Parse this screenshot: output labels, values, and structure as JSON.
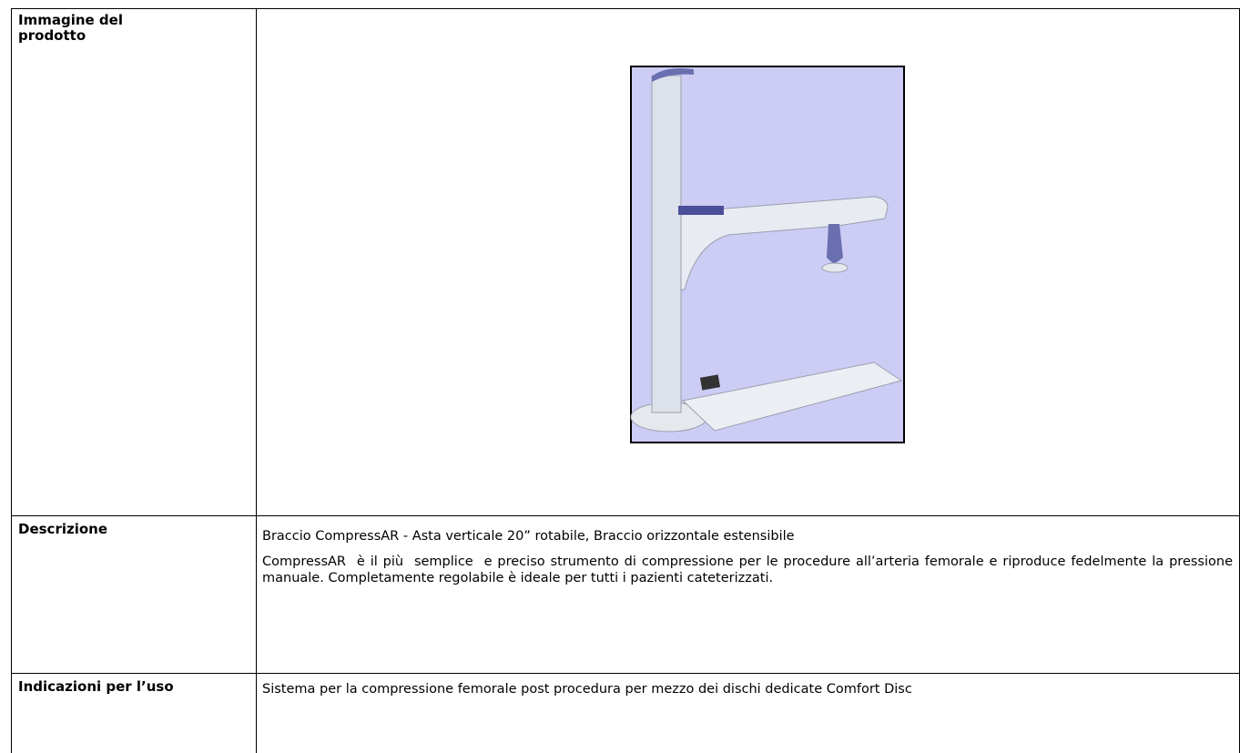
{
  "table": {
    "rows": [
      {
        "label": "Immagine del prodotto"
      },
      {
        "label": "Descrizione",
        "paragraphs": [
          "Braccio CompressAR - Asta verticale 20” rotabile, Braccio orizzontale estensibile",
          "CompressAR  è il più  semplice  e preciso strumento di compressione per le procedure all’arteria femorale e riproduce fedelmente la pressione manuale. Completamente regolabile è ideale per tutti i pazienti cateterizzati."
        ]
      },
      {
        "label": "Indicazioni per l’uso",
        "paragraphs": [
          "Sistema per la compressione femorale post procedura per mezzo dei dischi dedicate Comfort Disc"
        ]
      }
    ]
  }
}
